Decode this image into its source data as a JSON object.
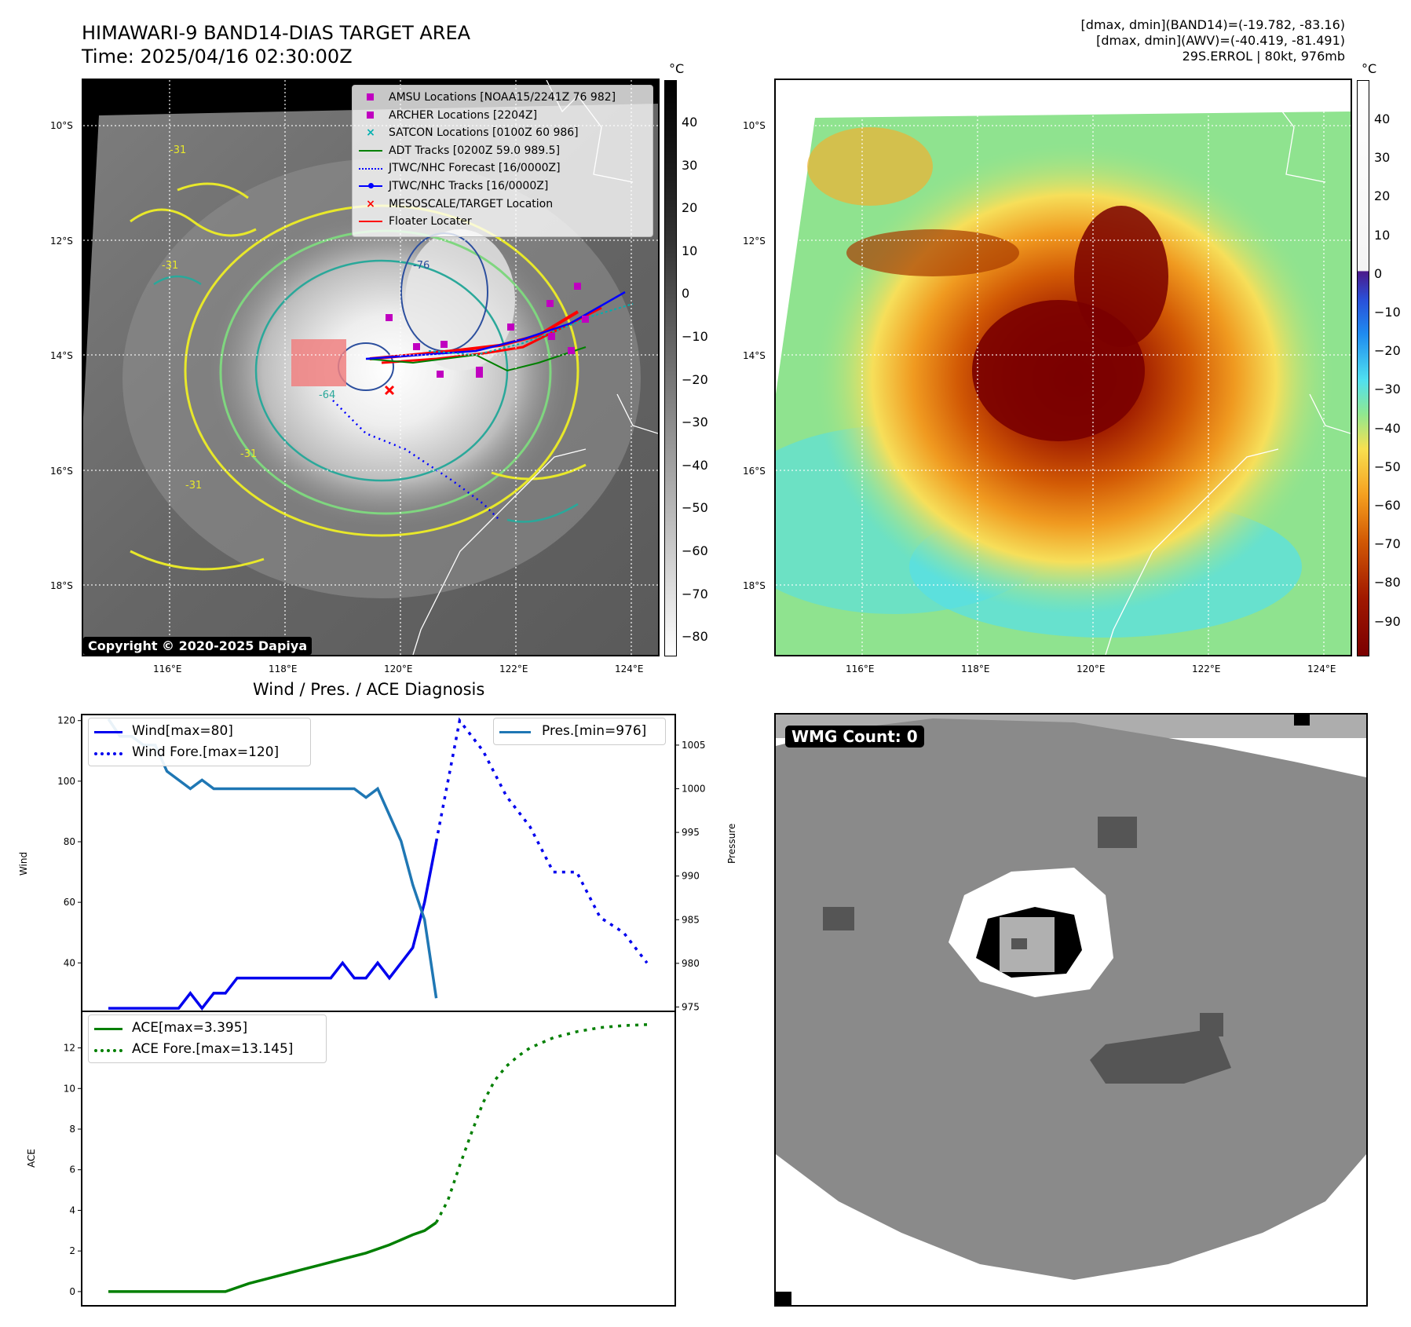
{
  "header": {
    "title": "HIMAWARI-9 BAND14-DIAS TARGET AREA",
    "time": "Time: 2025/04/16 02:30:00Z",
    "meta_line1": "[dmax, dmin](BAND14)=(-19.782, -83.16)",
    "meta_line2": "[dmax, dmin](AWV)=(-40.419, -81.491)",
    "meta_line3": "29S.ERROL | 80kt, 976mb"
  },
  "map": {
    "lat_labels": [
      "10°S",
      "12°S",
      "14°S",
      "16°S",
      "18°S"
    ],
    "lon_labels": [
      "116°E",
      "118°E",
      "120°E",
      "122°E",
      "124°E"
    ],
    "unit": "°C",
    "colorbar_left_ticks": [
      "40",
      "30",
      "20",
      "10",
      "0",
      "−10",
      "−20",
      "−30",
      "−40",
      "−50",
      "−60",
      "−70",
      "−80"
    ],
    "colorbar_right_ticks": [
      "40",
      "30",
      "20",
      "10",
      "0",
      "−10",
      "−20",
      "−30",
      "−40",
      "−50",
      "−60",
      "−70",
      "−80",
      "−90"
    ],
    "copyright": "Copyright © 2020-2025 Dapiya",
    "legend": [
      {
        "label": "AMSU Locations [NOAA15/2241Z 76 982]",
        "symbol": "square",
        "color": "#c000c0"
      },
      {
        "label": "ARCHER Locations [2204Z]",
        "symbol": "square",
        "color": "#c000c0"
      },
      {
        "label": "SATCON Locations [0100Z 60 986]",
        "symbol": "x",
        "color": "#00b0b0"
      },
      {
        "label": "ADT Tracks [0200Z 59.0 989.5]",
        "symbol": "line",
        "color": "#008000"
      },
      {
        "label": "JTWC/NHC Forecast [16/0000Z]",
        "symbol": "dotted",
        "color": "#0000ff"
      },
      {
        "label": "JTWC/NHC Tracks [16/0000Z]",
        "symbol": "line-dot",
        "color": "#0000ff"
      },
      {
        "label": "MESOSCALE/TARGET Location",
        "symbol": "x",
        "color": "#ff0000"
      },
      {
        "label": "Floater Locater",
        "symbol": "line",
        "color": "#ff0000"
      }
    ],
    "contour_labels": [
      "-31",
      "-31",
      "-31",
      "-64",
      "-76",
      "-31"
    ]
  },
  "diagnosis": {
    "title": "Wind / Pres. / ACE Diagnosis",
    "wind_ylabel": "Wind",
    "pres_ylabel": "Pressure",
    "ace_ylabel": "ACE",
    "wmg_count": "WMG Count: 0"
  },
  "chart_data": [
    {
      "type": "line",
      "title": "Wind / Pres. / ACE Diagnosis",
      "ylabel": "Wind",
      "ylim": [
        24,
        122
      ],
      "yticks": [
        40,
        60,
        80,
        100,
        120
      ],
      "x": [
        0,
        1,
        2,
        3,
        4,
        5,
        6,
        7,
        8,
        9,
        10,
        11,
        12,
        13,
        14,
        15,
        16,
        17,
        18,
        19,
        20,
        21,
        22,
        23,
        24,
        25,
        26,
        27,
        28,
        29,
        30,
        31,
        32,
        33,
        34,
        35,
        36,
        37,
        38,
        39,
        40,
        41,
        42,
        43,
        44,
        45,
        46
      ],
      "series": [
        {
          "name": "Wind[max=80]",
          "color": "#0000ee",
          "style": "solid",
          "x": [
            0,
            1,
            2,
            3,
            4,
            5,
            6,
            7,
            8,
            9,
            10,
            11,
            12,
            13,
            14,
            15,
            16,
            17,
            18,
            19,
            20,
            21,
            22,
            23,
            24,
            25,
            26,
            27,
            28
          ],
          "values": [
            25,
            25,
            25,
            25,
            25,
            25,
            25,
            30,
            25,
            30,
            30,
            35,
            35,
            35,
            35,
            35,
            35,
            35,
            35,
            35,
            40,
            35,
            35,
            40,
            35,
            40,
            45,
            60,
            80
          ]
        },
        {
          "name": "Wind Fore.[max=120]",
          "color": "#0000ee",
          "style": "dotted",
          "x": [
            28,
            29,
            30,
            32,
            34,
            36,
            38,
            40,
            42,
            44,
            46
          ],
          "values": [
            80,
            100,
            120,
            110,
            95,
            85,
            70,
            70,
            55,
            50,
            40
          ]
        }
      ]
    },
    {
      "type": "line",
      "ylabel": "Pressure",
      "ylim": [
        974.5,
        1008.5
      ],
      "yticks": [
        975,
        980,
        985,
        990,
        995,
        1000,
        1005
      ],
      "series": [
        {
          "name": "Pres.[min=976]",
          "color": "#1f77b4",
          "style": "solid",
          "x": [
            0,
            1,
            2,
            3,
            4,
            5,
            6,
            7,
            8,
            9,
            10,
            11,
            12,
            13,
            14,
            15,
            16,
            17,
            18,
            19,
            20,
            21,
            22,
            23,
            24,
            25,
            26,
            27,
            28
          ],
          "values": [
            1008,
            1006,
            1006,
            1005,
            1005,
            1002,
            1001,
            1000,
            1001,
            1000,
            1000,
            1000,
            1000,
            1000,
            1000,
            1000,
            1000,
            1000,
            1000,
            1000,
            1000,
            1000,
            999,
            1000,
            997,
            994,
            989,
            985,
            976
          ]
        }
      ]
    },
    {
      "type": "line",
      "ylabel": "ACE",
      "ylim": [
        -0.7,
        13.8
      ],
      "yticks": [
        0,
        2,
        4,
        6,
        8,
        10,
        12
      ],
      "series": [
        {
          "name": "ACE[max=3.395]",
          "color": "#007f00",
          "style": "solid",
          "x": [
            0,
            10,
            12,
            14,
            16,
            18,
            20,
            22,
            24,
            26,
            27,
            28
          ],
          "values": [
            0,
            0,
            0.4,
            0.7,
            1.0,
            1.3,
            1.6,
            1.9,
            2.3,
            2.8,
            3.0,
            3.4
          ]
        },
        {
          "name": "ACE Fore.[max=13.145]",
          "color": "#007f00",
          "style": "dotted",
          "x": [
            28,
            29,
            30,
            31,
            32,
            33,
            34,
            35,
            36,
            38,
            40,
            42,
            44,
            46
          ],
          "values": [
            3.4,
            4.5,
            6.2,
            7.8,
            9.3,
            10.4,
            11.1,
            11.6,
            12.0,
            12.5,
            12.8,
            13.0,
            13.1,
            13.145
          ]
        }
      ]
    }
  ]
}
